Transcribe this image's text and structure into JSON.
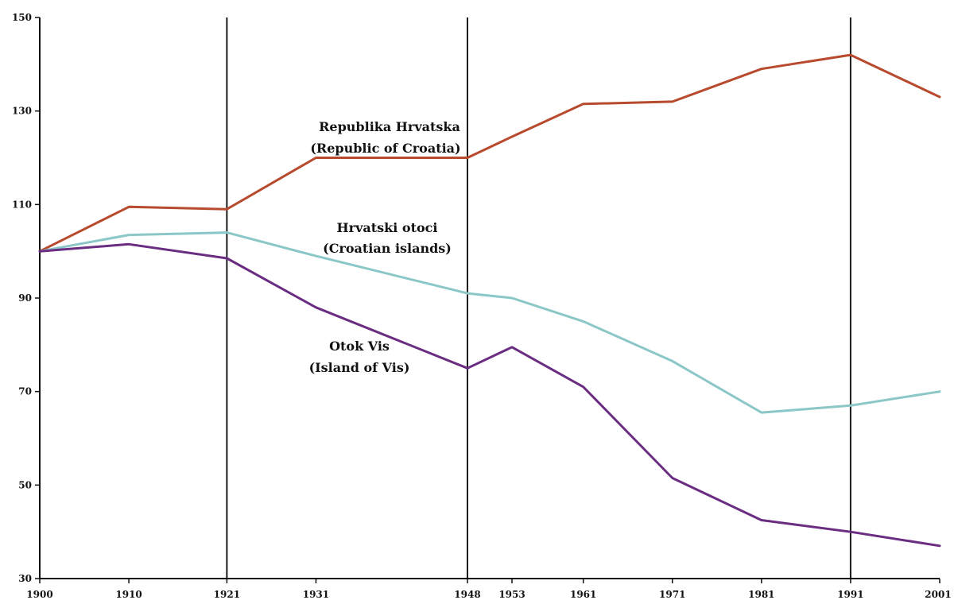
{
  "chart_data": {
    "type": "line",
    "x": [
      1900,
      1910,
      1921,
      1931,
      1948,
      1953,
      1961,
      1971,
      1981,
      1991,
      2001
    ],
    "x_tick_labels": [
      "1900",
      "1910",
      "1921",
      "1931",
      "1948",
      "1953",
      "1961",
      "1971",
      "1981",
      "1991",
      "2001"
    ],
    "y_ticks": [
      30,
      50,
      70,
      90,
      110,
      130,
      150
    ],
    "y_tick_labels": [
      "30",
      "50",
      "70",
      "90",
      "110",
      "130",
      "150"
    ],
    "xlim": [
      1900,
      2001
    ],
    "ylim": [
      30,
      150
    ],
    "vertical_reference_lines": [
      1921,
      1948,
      1991
    ],
    "grid": false,
    "legend": "none",
    "series": [
      {
        "key": "croatia",
        "label_line1": "Republika Hrvatska",
        "label_line2": "(Republic of Croatia)",
        "color": "#b84a2e",
        "values": [
          100,
          109.5,
          109,
          120,
          120,
          124.5,
          131.5,
          132,
          139,
          142,
          133
        ]
      },
      {
        "key": "islands",
        "label_line1": "Hrvatski otoci",
        "label_line2": "(Croatian islands)",
        "color": "#8cc7c7",
        "values": [
          100,
          103.5,
          104,
          99,
          91,
          90,
          85,
          76.5,
          65.5,
          67,
          70
        ]
      },
      {
        "key": "vis",
        "label_line1": "Otok Vis",
        "label_line2": "(Island of Vis)",
        "color": "#6a2d82",
        "values": [
          100,
          101.5,
          98.5,
          88,
          75,
          79.5,
          71,
          51.5,
          42.5,
          40,
          37
        ]
      }
    ]
  }
}
